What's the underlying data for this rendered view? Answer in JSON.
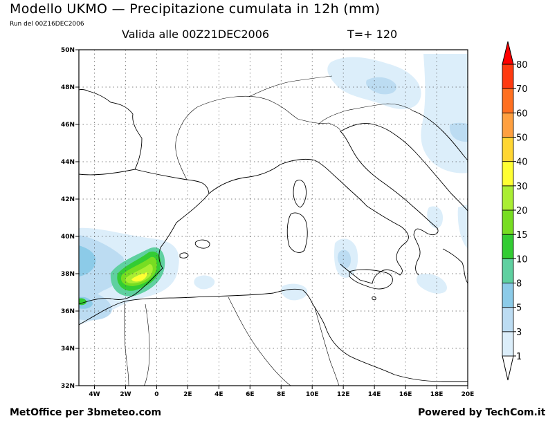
{
  "header": {
    "title": "Modello UKMO — Precipitazione cumulata in 12h (mm)",
    "run": "Run del 00Z16DEC2006",
    "valid": "Valida alle 00Z21DEC2006",
    "step": "T=+ 120"
  },
  "footer": {
    "left": "MetOffice per 3bmeteo.com",
    "right": "Powered by TechCom.it"
  },
  "map": {
    "lat_range": [
      32,
      50
    ],
    "lon_range": [
      -5,
      20
    ],
    "lat_labels": [
      "32N",
      "34N",
      "36N",
      "38N",
      "40N",
      "42N",
      "44N",
      "46N",
      "48N",
      "50N"
    ],
    "lat_values": [
      32,
      34,
      36,
      38,
      40,
      42,
      44,
      46,
      48,
      50
    ],
    "lon_labels": [
      "4W",
      "2W",
      "0",
      "2E",
      "4E",
      "6E",
      "8E",
      "10E",
      "12E",
      "14E",
      "16E",
      "18E",
      "20E"
    ],
    "lon_values": [
      -4,
      -2,
      0,
      2,
      4,
      6,
      8,
      10,
      12,
      14,
      16,
      18,
      20
    ],
    "grid": "dotted"
  },
  "colorbar": {
    "levels": [
      "1",
      "3",
      "5",
      "8",
      "10",
      "15",
      "20",
      "30",
      "40",
      "50",
      "60",
      "70",
      "80"
    ],
    "colors": [
      "#dceefa",
      "#bcdcf2",
      "#8ccbe8",
      "#5fd0a0",
      "#33cc33",
      "#77dd22",
      "#aaee33",
      "#ffff33",
      "#ffd633",
      "#ffa040",
      "#ff7020",
      "#ff3a10",
      "#ff0000"
    ],
    "bottom_color": "#ffffff"
  }
}
